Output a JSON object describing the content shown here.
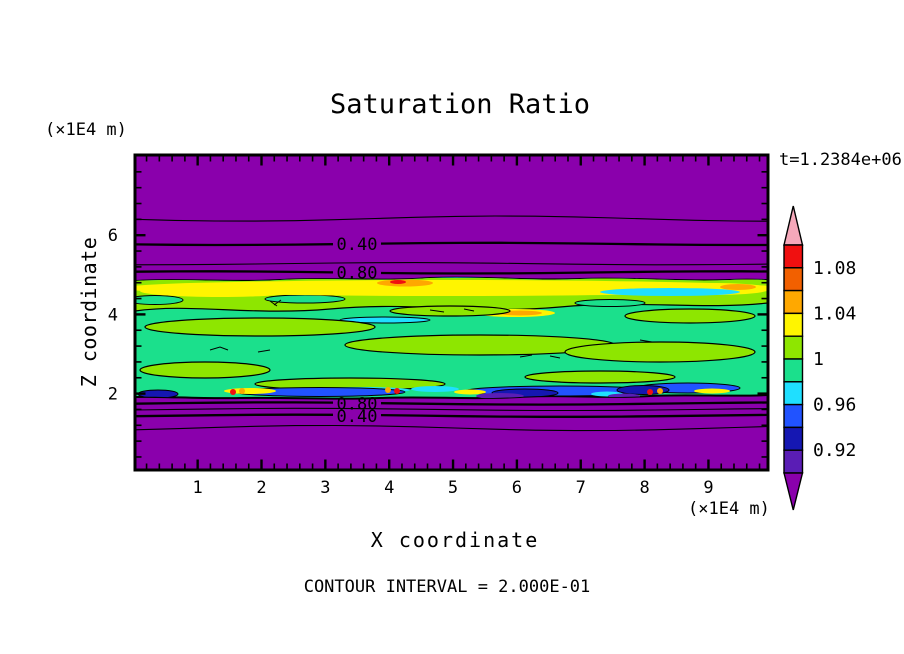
{
  "chart_data": {
    "type": "contour",
    "title": "Saturation Ratio",
    "time_annotation": "t=1.2384e+06",
    "contour_interval_note": "CONTOUR INTERVAL = 2.000E-01",
    "contour_interval": 0.2,
    "axes": {
      "x": {
        "label": "X coordinate",
        "unit": "(×1E4 m)",
        "range": [
          0,
          10
        ],
        "major_ticks": [
          1,
          2,
          3,
          4,
          5,
          6,
          7,
          8,
          9
        ],
        "minor_step": 0.2
      },
      "z": {
        "label": "Z coordinate",
        "unit": "(×1E4 m)",
        "range": [
          0,
          8
        ],
        "major_ticks": [
          2,
          4,
          6
        ],
        "minor_step": 0.4
      }
    },
    "colorbar": {
      "levels": [
        0.9,
        0.92,
        0.94,
        0.96,
        0.98,
        1.0,
        1.02,
        1.04,
        1.06,
        1.08,
        1.1
      ],
      "segment_colors_top_to_bottom": [
        "#F01010",
        "#F26000",
        "#FFA800",
        "#FFF500",
        "#8EE600",
        "#1BE08C",
        "#1FDFFF",
        "#2153FF",
        "#1517B2",
        "#5A1DB5"
      ],
      "above_max_color": "#F5A8BA",
      "below_min_color": "#8A00AC",
      "labels": [
        {
          "text": "1.08",
          "level": 1.08
        },
        {
          "text": "1.04",
          "level": 1.04
        },
        {
          "text": "1",
          "level": 1.0
        },
        {
          "text": "0.96",
          "level": 0.96
        },
        {
          "text": "0.92",
          "level": 0.92
        }
      ]
    },
    "contour_lines": {
      "top": [
        {
          "z": 6.42,
          "weight": "thin",
          "value": 0.2
        },
        {
          "z": 5.78,
          "weight": "thick",
          "value": 0.4,
          "label": "0.40"
        },
        {
          "z": 5.28,
          "weight": "thin",
          "value": 0.6
        },
        {
          "z": 5.06,
          "weight": "thick",
          "value": 0.8,
          "label": "0.80"
        }
      ],
      "bottom": [
        {
          "z": 1.75,
          "weight": "thick",
          "value": 0.8,
          "label": "0.80"
        },
        {
          "z": 1.6,
          "weight": "thin",
          "value": 0.6
        },
        {
          "z": 1.44,
          "weight": "thick",
          "value": 0.4,
          "label": "0.40"
        },
        {
          "z": 1.13,
          "weight": "thin",
          "value": 0.2
        }
      ]
    },
    "band": {
      "z_top": 4.88,
      "z_bottom": 1.85,
      "description": "saturated layer with S ≈ 0.96–1.08; mostly 0.98–1.02 (green), yellow/orange streaks near z≈4.8, cyan/blue/navy patches near z≈2"
    },
    "background_region": "S < 0.90 (purple) for z > ~5 and z < ~1.8",
    "background_color": "#8A00AC"
  }
}
